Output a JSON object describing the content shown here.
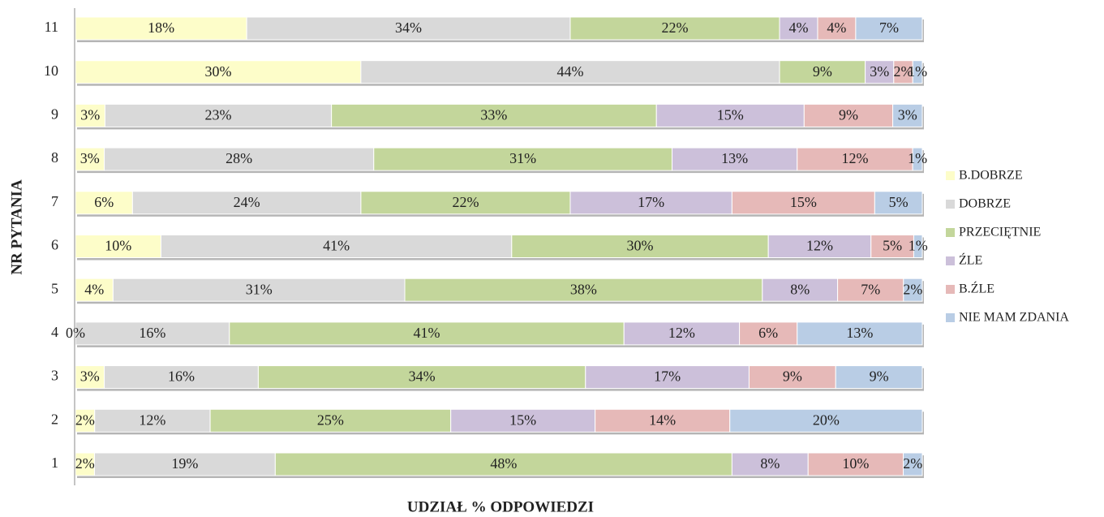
{
  "chart_data": {
    "type": "bar",
    "orientation": "horizontal",
    "stacking": "percent",
    "xlabel": "UDZIAŁ % ODPOWIEDZI",
    "ylabel": "NR PYTANIA",
    "categories": [
      "1",
      "2",
      "3",
      "4",
      "5",
      "6",
      "7",
      "8",
      "9",
      "10",
      "11"
    ],
    "legend": "right",
    "series": [
      {
        "name": "B.DOBRZE",
        "color": "#fdfdc9",
        "values": [
          2,
          2,
          3,
          0,
          4,
          10,
          6,
          3,
          3,
          30,
          18
        ],
        "value_labels": [
          "2%",
          "2%",
          "3%",
          "0%",
          "4%",
          "10%",
          "6%",
          "3%",
          "3%",
          "30%",
          "18%"
        ]
      },
      {
        "name": "DOBRZE",
        "color": "#d9d9d9",
        "values": [
          19,
          12,
          16,
          16,
          31,
          41,
          24,
          28,
          23,
          44,
          34
        ],
        "value_labels": [
          "19%",
          "12%",
          "16%",
          "16%",
          "31%",
          "41%",
          "24%",
          "28%",
          "23%",
          "44%",
          "34%"
        ]
      },
      {
        "name": "PRZECIĘTNIE",
        "color": "#c3d69b",
        "values": [
          48,
          25,
          34,
          41,
          38,
          30,
          22,
          31,
          33,
          9,
          22
        ],
        "value_labels": [
          "48%",
          "25%",
          "34%",
          "41%",
          "38%",
          "30%",
          "22%",
          "31%",
          "33%",
          "9%",
          "22%"
        ]
      },
      {
        "name": "ŹLE",
        "color": "#ccc0da",
        "values": [
          8,
          15,
          17,
          12,
          8,
          12,
          17,
          13,
          15,
          3,
          4
        ],
        "value_labels": [
          "8%",
          "15%",
          "17%",
          "12%",
          "8%",
          "12%",
          "17%",
          "13%",
          "15%",
          "3%",
          "4%"
        ]
      },
      {
        "name": "B.ŹLE",
        "color": "#e6b9b8",
        "values": [
          10,
          14,
          9,
          6,
          7,
          5,
          15,
          12,
          9,
          2,
          4
        ],
        "value_labels": [
          "10%",
          "14%",
          "9%",
          "6%",
          "7%",
          "5%",
          "15%",
          "12%",
          "9%",
          "2%",
          "4%"
        ]
      },
      {
        "name": "NIE MAM ZDANIA",
        "color": "#b9cde5",
        "values": [
          2,
          20,
          9,
          13,
          2,
          1,
          5,
          1,
          3,
          1,
          7
        ],
        "value_labels": [
          "2%",
          "20%",
          "9%",
          "13%",
          "2%",
          "1%",
          "5%",
          "1%",
          "3%",
          "1%",
          "7%"
        ]
      }
    ]
  }
}
